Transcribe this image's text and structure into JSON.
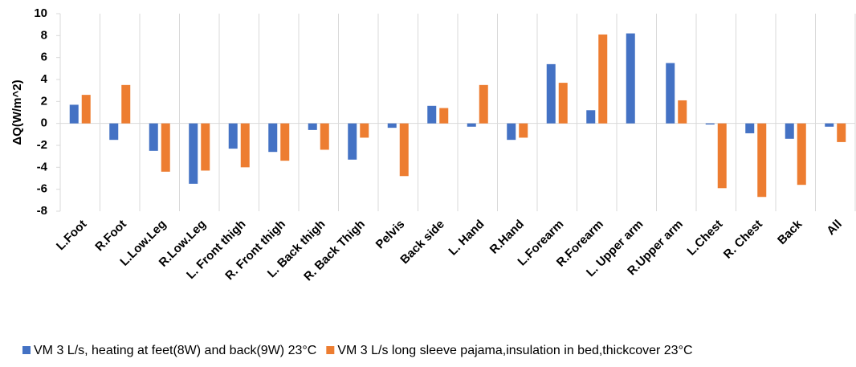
{
  "chart_data": {
    "type": "bar",
    "y_label": "ΔQ(W/m^2)",
    "categories": [
      "L.Foot",
      "R.Foot",
      "L.Low.Leg",
      "R.Low.Leg",
      "L. Front thigh",
      "R. Front thigh",
      "L. Back thigh",
      "R. Back Thigh",
      "Pelvis",
      "Back side",
      "L. Hand",
      "R.Hand",
      "L.Forearm",
      "R.Forearm",
      "L. Upper arm",
      "R.Upper arm",
      "L.Chest",
      "R. Chest",
      "Back",
      "All"
    ],
    "series": [
      {
        "name": "VM 3 L/s, heating at feet(8W) and back(9W) 23°C",
        "color": "#4472c4",
        "values": [
          1.7,
          -1.5,
          -2.5,
          -5.5,
          -2.3,
          -2.6,
          -0.6,
          -3.3,
          -0.4,
          1.6,
          -0.3,
          -1.5,
          5.4,
          1.2,
          8.2,
          5.5,
          -0.1,
          -0.9,
          -1.4,
          -0.3
        ]
      },
      {
        "name": "VM 3 L/s long sleeve pajama,insulation in bed,thickcover 23°C",
        "color": "#ed7d31",
        "values": [
          2.6,
          3.5,
          -4.4,
          -4.3,
          -4.0,
          -3.4,
          -2.4,
          -1.3,
          -4.8,
          1.4,
          3.5,
          -1.3,
          3.7,
          8.1,
          0,
          2.1,
          -5.9,
          -6.7,
          -5.6,
          -1.7
        ]
      }
    ],
    "ylim": [
      -8,
      10
    ],
    "yticks": [
      -8,
      -6,
      -4,
      -2,
      0,
      2,
      4,
      6,
      8,
      10
    ]
  }
}
